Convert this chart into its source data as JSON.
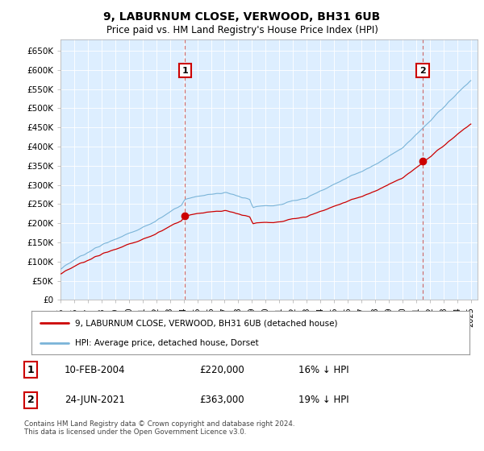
{
  "title_line1": "9, LABURNUM CLOSE, VERWOOD, BH31 6UB",
  "title_line2": "Price paid vs. HM Land Registry's House Price Index (HPI)",
  "ylim": [
    0,
    680000
  ],
  "yticks": [
    0,
    50000,
    100000,
    150000,
    200000,
    250000,
    300000,
    350000,
    400000,
    450000,
    500000,
    550000,
    600000,
    650000
  ],
  "ytick_labels": [
    "£0",
    "£50K",
    "£100K",
    "£150K",
    "£200K",
    "£250K",
    "£300K",
    "£350K",
    "£400K",
    "£450K",
    "£500K",
    "£550K",
    "£600K",
    "£650K"
  ],
  "sale1_date": 2004.11,
  "sale1_price": 220000,
  "sale1_label": "1",
  "sale2_date": 2021.48,
  "sale2_price": 363000,
  "sale2_label": "2",
  "hpi_color": "#7ab4d8",
  "price_color": "#cc0000",
  "annotation_box_color": "#cc0000",
  "background_color": "#ffffff",
  "chart_bg_color": "#ddeeff",
  "grid_color": "#ffffff",
  "legend_label1": "9, LABURNUM CLOSE, VERWOOD, BH31 6UB (detached house)",
  "legend_label2": "HPI: Average price, detached house, Dorset",
  "table_row1": [
    "1",
    "10-FEB-2004",
    "£220,000",
    "16% ↓ HPI"
  ],
  "table_row2": [
    "2",
    "24-JUN-2021",
    "£363,000",
    "19% ↓ HPI"
  ],
  "footer": "Contains HM Land Registry data © Crown copyright and database right 2024.\nThis data is licensed under the Open Government Licence v3.0."
}
